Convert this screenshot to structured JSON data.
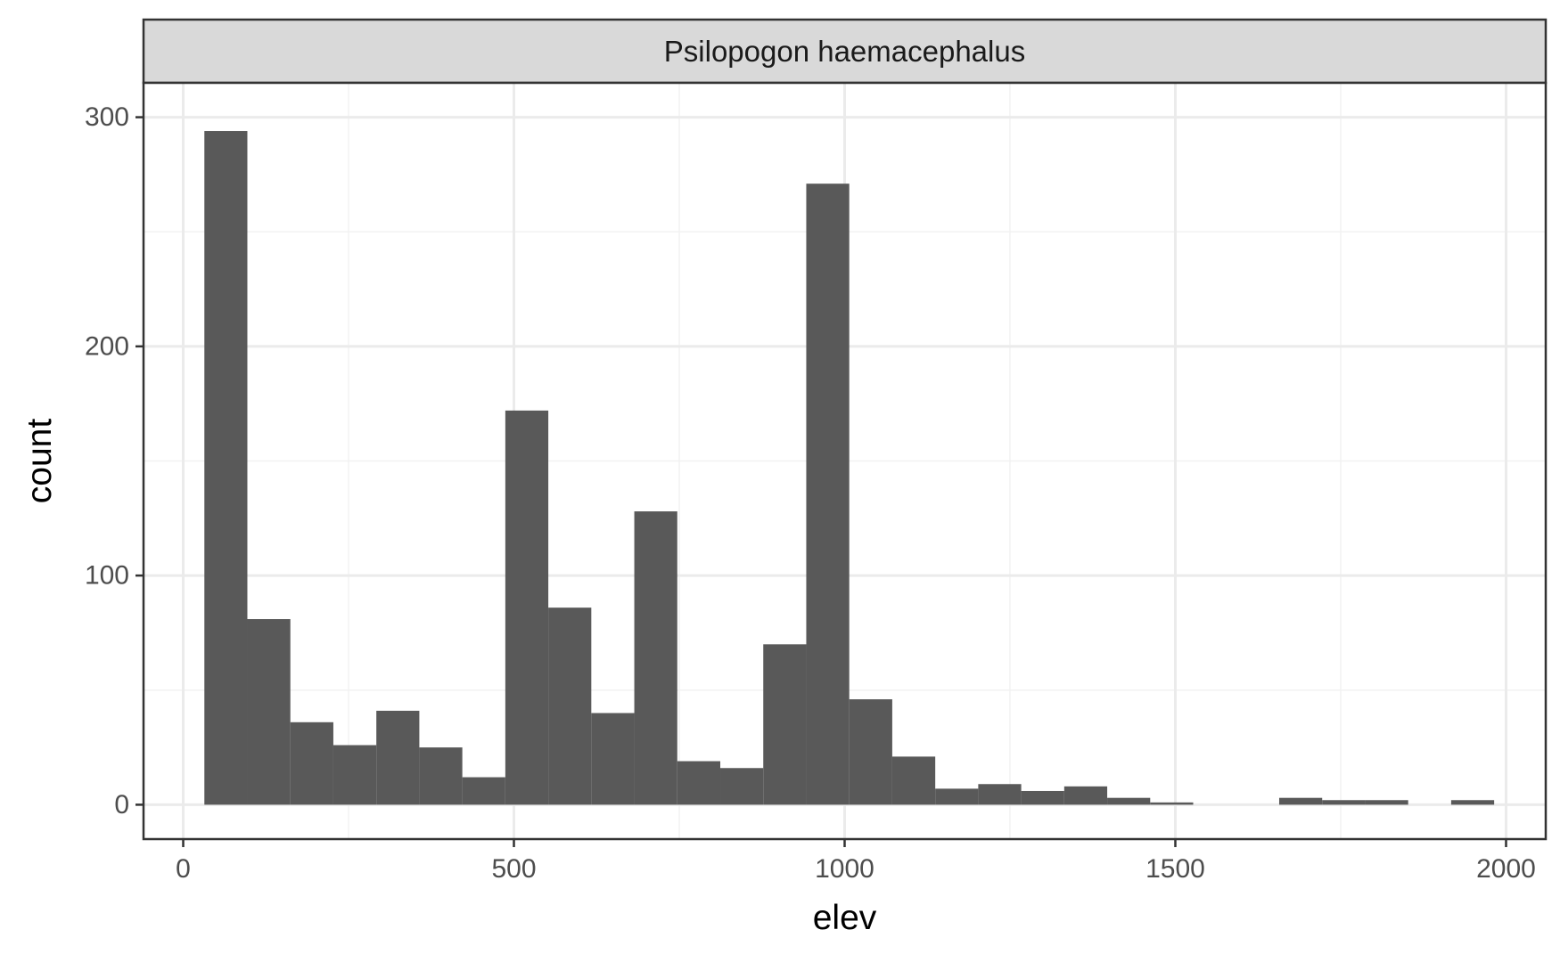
{
  "chart_data": {
    "type": "bar",
    "subtype": "histogram",
    "facet_label": "Psilopogon haemacephalus",
    "xlabel": "elev",
    "ylabel": "count",
    "xlim": [
      -60,
      2060
    ],
    "ylim": [
      -15,
      315
    ],
    "x_ticks": [
      0,
      500,
      1000,
      1500,
      2000
    ],
    "x_tick_labels": [
      "0",
      "500",
      "1000",
      "1500",
      "2000"
    ],
    "y_ticks": [
      0,
      100,
      200,
      300
    ],
    "y_tick_labels": [
      "0",
      "100",
      "200",
      "300"
    ],
    "bins": [
      {
        "x0": 32,
        "x1": 97,
        "count": 294
      },
      {
        "x0": 97,
        "x1": 162,
        "count": 81
      },
      {
        "x0": 162,
        "x1": 227,
        "count": 36
      },
      {
        "x0": 227,
        "x1": 292,
        "count": 26
      },
      {
        "x0": 292,
        "x1": 357,
        "count": 41
      },
      {
        "x0": 357,
        "x1": 422,
        "count": 25
      },
      {
        "x0": 422,
        "x1": 487,
        "count": 12
      },
      {
        "x0": 487,
        "x1": 552,
        "count": 172
      },
      {
        "x0": 552,
        "x1": 617,
        "count": 86
      },
      {
        "x0": 617,
        "x1": 682,
        "count": 40
      },
      {
        "x0": 682,
        "x1": 747,
        "count": 128
      },
      {
        "x0": 747,
        "x1": 812,
        "count": 19
      },
      {
        "x0": 812,
        "x1": 877,
        "count": 16
      },
      {
        "x0": 877,
        "x1": 942,
        "count": 70
      },
      {
        "x0": 942,
        "x1": 1007,
        "count": 271
      },
      {
        "x0": 1007,
        "x1": 1072,
        "count": 46
      },
      {
        "x0": 1072,
        "x1": 1137,
        "count": 21
      },
      {
        "x0": 1137,
        "x1": 1202,
        "count": 7
      },
      {
        "x0": 1202,
        "x1": 1267,
        "count": 9
      },
      {
        "x0": 1267,
        "x1": 1332,
        "count": 6
      },
      {
        "x0": 1332,
        "x1": 1397,
        "count": 8
      },
      {
        "x0": 1397,
        "x1": 1462,
        "count": 3
      },
      {
        "x0": 1462,
        "x1": 1527,
        "count": 1
      },
      {
        "x0": 1527,
        "x1": 1592,
        "count": 0
      },
      {
        "x0": 1592,
        "x1": 1657,
        "count": 0
      },
      {
        "x0": 1657,
        "x1": 1722,
        "count": 3
      },
      {
        "x0": 1722,
        "x1": 1787,
        "count": 2
      },
      {
        "x0": 1787,
        "x1": 1852,
        "count": 2
      },
      {
        "x0": 1852,
        "x1": 1917,
        "count": 0
      },
      {
        "x0": 1917,
        "x1": 1982,
        "count": 2
      }
    ],
    "grid": true,
    "legend": "none",
    "colors": {
      "bar_fill": "#595959",
      "panel_background": "#ffffff",
      "grid_major": "#ebebeb",
      "grid_minor": "#f2f2f2",
      "panel_border": "#333333",
      "strip_background": "#d9d9d9",
      "tick_label": "#4d4d4d",
      "axis_title": "#000000"
    }
  }
}
